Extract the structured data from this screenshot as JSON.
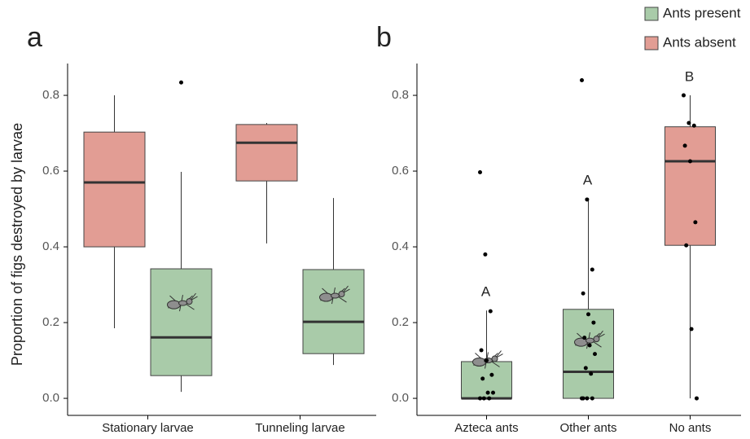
{
  "chart_data": [
    {
      "type": "box",
      "panel_label": "a",
      "y_label": "Proportion of figs destroyed by larvae",
      "categories": [
        "Stationary larvae",
        "Tunneling larvae"
      ],
      "series": [
        {
          "name": "Ants present",
          "color": "#a9cba9",
          "boxes": [
            {
              "min": 0.017,
              "q1": 0.06,
              "median": 0.161,
              "q3": 0.342,
              "max": 0.598,
              "outliers": [
                0.834
              ]
            },
            {
              "min": 0.088,
              "q1": 0.118,
              "median": 0.202,
              "q3": 0.34,
              "max": 0.529
            }
          ]
        },
        {
          "name": "Ants absent",
          "color": "#e29d94",
          "boxes": [
            {
              "min": 0.185,
              "q1": 0.4,
              "median": 0.57,
              "q3": 0.703,
              "max": 0.8
            },
            {
              "min": 0.409,
              "q1": 0.574,
              "median": 0.675,
              "q3": 0.723,
              "max": 0.727
            }
          ]
        }
      ],
      "ylim": [
        -0.045,
        0.884
      ],
      "yticks": [
        {
          "value": 0,
          "label": "0.0"
        },
        0.2,
        0.4,
        0.6,
        0.8
      ]
    },
    {
      "type": "box",
      "panel_label": "b",
      "categories": [
        "Azteca ants",
        "Other ants",
        "No ants"
      ],
      "colors": [
        "#a9cba9",
        "#a9cba9",
        "#e29d94"
      ],
      "boxes": [
        {
          "min": 0,
          "q1": 0,
          "median": 0,
          "q3": 0.097,
          "max": 0.232
        },
        {
          "min": 0,
          "q1": 0,
          "median": 0.07,
          "q3": 0.235,
          "max": 0.527
        },
        {
          "min": 0,
          "q1": 0.404,
          "median": 0.626,
          "q3": 0.717,
          "max": 0.8
        }
      ],
      "points": [
        [
          0.597,
          0.38,
          0.23,
          0.127,
          0.1,
          0.062,
          0.052,
          0.015,
          0.015,
          0,
          0,
          0
        ],
        [
          0.84,
          0.525,
          0.34,
          0.277,
          0.222,
          0.2,
          0.16,
          0.14,
          0.117,
          0.08,
          0.065,
          0,
          0,
          0,
          0
        ],
        [
          0.8,
          0.727,
          0.72,
          0.667,
          0.626,
          0.465,
          0.404,
          0.183,
          0
        ]
      ],
      "annotations": [
        "A",
        "A",
        "B"
      ],
      "ylim": [
        -0.045,
        0.884
      ],
      "yticks": [
        {
          "value": 0,
          "label": "0.0"
        },
        0.2,
        0.4,
        0.6,
        0.8
      ]
    }
  ]
}
